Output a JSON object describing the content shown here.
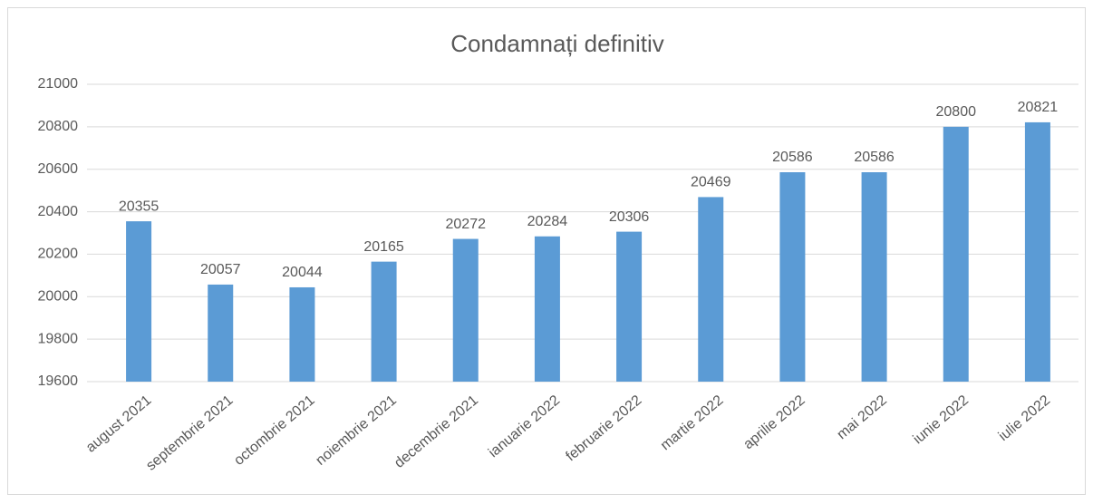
{
  "chart_data": {
    "type": "bar",
    "title": "Condamnați definitiv",
    "categories": [
      "august 2021",
      "septembrie 2021",
      "octombrie 2021",
      "noiembrie 2021",
      "decembrie 2021",
      "ianuarie 2022",
      "februarie 2022",
      "martie 2022",
      "aprilie 2022",
      "mai 2022",
      "iunie 2022",
      "iulie 2022"
    ],
    "values": [
      20355,
      20057,
      20044,
      20165,
      20272,
      20284,
      20306,
      20469,
      20586,
      20586,
      20800,
      20821
    ],
    "color": "#5b9bd5",
    "ylim": [
      19600,
      21000
    ],
    "yticks": [
      19600,
      19800,
      20000,
      20200,
      20400,
      20600,
      20800,
      21000
    ],
    "grid": true
  }
}
